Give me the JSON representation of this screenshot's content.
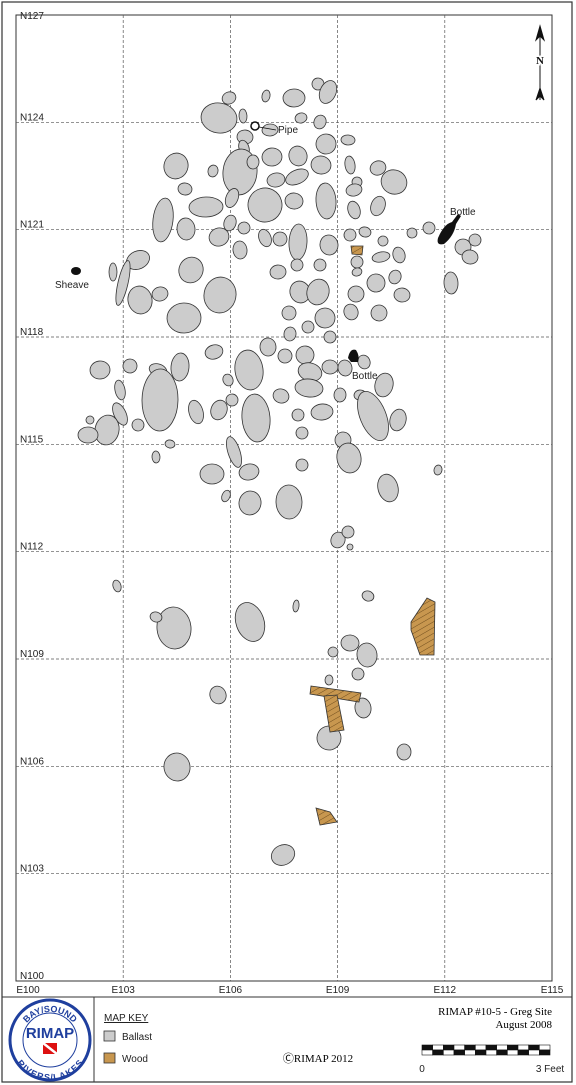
{
  "map": {
    "northings": [
      "N127",
      "N124",
      "N121",
      "N118",
      "N115",
      "N112",
      "N109",
      "N106",
      "N103",
      "N100"
    ],
    "eastings": [
      "E100",
      "E103",
      "E106",
      "E109",
      "E112",
      "E115"
    ],
    "north_arrow": "N",
    "features": {
      "pipe": "Pipe",
      "bottle_1": "Bottle",
      "sheave": "Sheave",
      "bottle_2": "Bottle"
    }
  },
  "legend": {
    "title": "MAP KEY",
    "items": [
      "Ballast",
      "Wood"
    ]
  },
  "logo": {
    "top": "BAY/SOUND",
    "middle": "RIMAP",
    "bottom": "RIVERS/LAKES"
  },
  "copyright": "ⒸRIMAP 2012",
  "site": {
    "title": "RIMAP #10-5 - Greg Site",
    "date": "August 2008"
  },
  "scale": {
    "start": "0",
    "end": "3 Feet"
  }
}
